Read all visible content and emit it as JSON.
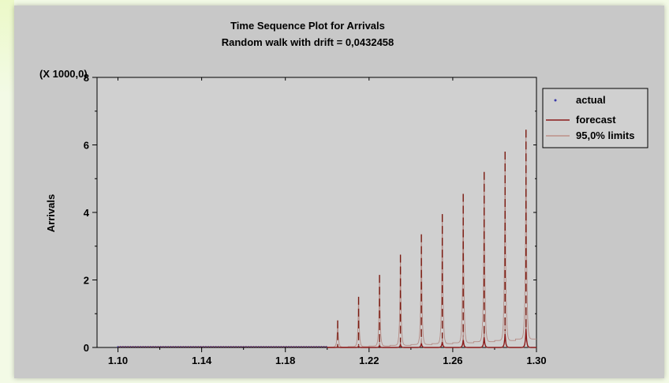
{
  "chart_data": {
    "type": "line",
    "title": "Time Sequence Plot for Arrivals",
    "subtitle": "Random walk with drift = 0,0432458",
    "ylabel": "Arrivals",
    "xlabel": "",
    "y_multiplier": "(X 1000,0)",
    "xlim": [
      1.09,
      1.3
    ],
    "ylim": [
      0,
      8
    ],
    "x_ticks": [
      "1.10",
      "1.14",
      "1.18",
      "1.22",
      "1.26",
      "1.30"
    ],
    "y_ticks": [
      "0",
      "2",
      "4",
      "6",
      "8"
    ],
    "legend_position": "right",
    "series": [
      {
        "name": "actual",
        "style": "points",
        "color": "#3a3aa8",
        "x_range": [
          1.1,
          1.2
        ],
        "values_approx": 0.02
      },
      {
        "name": "forecast",
        "style": "line",
        "color": "#8b1a1a",
        "period_start": 1.2,
        "period": 0.01,
        "peak_values": [
          0.02,
          0.03,
          0.05,
          0.08,
          0.12,
          0.16,
          0.22,
          0.3,
          0.4,
          0.55
        ]
      },
      {
        "name": "95,0% limits",
        "style": "line",
        "color": "#8b1a1a",
        "period_start": 1.2,
        "period": 0.01,
        "upper_peaks": [
          0.8,
          1.5,
          2.15,
          2.75,
          3.35,
          3.95,
          4.55,
          5.2,
          5.8,
          6.45
        ],
        "upper_base": [
          0.05,
          0.1,
          0.17,
          0.25,
          0.35,
          0.45,
          0.55,
          0.68,
          0.82,
          1.0
        ],
        "lower_peaks": [
          0.06,
          0.1,
          0.15,
          0.2,
          0.28,
          0.38,
          0.48,
          0.6,
          0.75,
          0.95
        ]
      }
    ]
  }
}
